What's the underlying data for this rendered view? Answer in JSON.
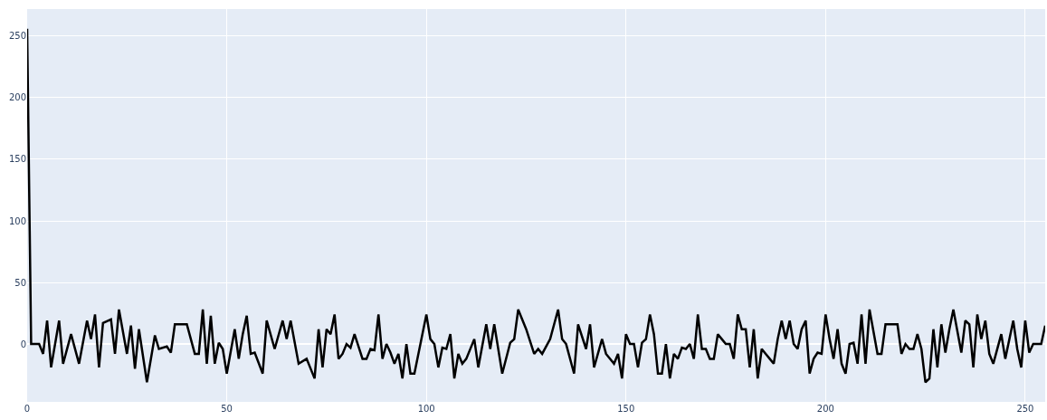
{
  "chart_data": {
    "type": "line",
    "xlim": [
      0,
      255
    ],
    "ylim": [
      -47,
      272
    ],
    "xticks": [
      0,
      50,
      100,
      150,
      200,
      250
    ],
    "yticks": [
      0,
      50,
      100,
      150,
      200,
      250
    ],
    "grid": true,
    "marker": "none",
    "line_style": "solid",
    "series": [
      {
        "color": "#000000",
        "x": [
          0,
          1,
          3,
          4,
          5,
          6,
          8,
          9,
          11,
          13,
          15,
          16,
          17,
          18,
          19,
          21,
          22,
          23,
          25,
          26,
          27,
          28,
          30,
          32,
          33,
          35,
          36,
          37,
          40,
          42,
          43,
          44,
          45,
          46,
          47,
          48,
          49,
          50,
          52,
          53,
          54,
          55,
          56,
          57,
          59,
          60,
          62,
          64,
          65,
          66,
          68,
          70,
          72,
          73,
          74,
          75,
          76,
          77,
          78,
          79,
          80,
          81,
          82,
          84,
          85,
          86,
          87,
          88,
          89,
          90,
          91,
          92,
          93,
          94,
          95,
          96,
          97,
          100,
          101,
          102,
          103,
          104,
          105,
          106,
          107,
          108,
          109,
          110,
          112,
          113,
          115,
          116,
          117,
          119,
          121,
          122,
          123,
          125,
          127,
          128,
          129,
          131,
          133,
          134,
          135,
          137,
          138,
          140,
          141,
          142,
          144,
          145,
          147,
          148,
          149,
          150,
          151,
          152,
          153,
          154,
          155,
          156,
          157,
          158,
          159,
          160,
          161,
          162,
          163,
          164,
          165,
          166,
          167,
          168,
          169,
          170,
          171,
          172,
          173,
          174,
          175,
          176,
          177,
          178,
          179,
          180,
          181,
          182,
          183,
          184,
          185,
          186,
          187,
          188,
          189,
          190,
          191,
          192,
          193,
          194,
          195,
          196,
          197,
          198,
          199,
          200,
          201,
          202,
          203,
          204,
          205,
          206,
          207,
          208,
          209,
          210,
          211,
          213,
          214,
          215,
          218,
          219,
          220,
          221,
          222,
          223,
          224,
          225,
          226,
          227,
          228,
          229,
          230,
          231,
          232,
          234,
          235,
          236,
          237,
          238,
          239,
          240,
          241,
          242,
          244,
          245,
          247,
          248,
          249,
          250,
          251,
          252,
          254,
          255
        ],
        "values": [
          256,
          0,
          0,
          -8,
          19,
          -19,
          19,
          -16,
          8,
          -16,
          19,
          4,
          24,
          -19,
          17,
          20,
          -8,
          28,
          -8,
          15,
          -20,
          12,
          -31,
          7,
          -4,
          -2,
          -7,
          16,
          16,
          -8,
          -8,
          28,
          -16,
          23,
          -16,
          1,
          -4,
          -24,
          12,
          -12,
          8,
          23,
          -8,
          -7,
          -24,
          19,
          -4,
          19,
          4,
          19,
          -16,
          -12,
          -28,
          12,
          -19,
          12,
          8,
          24,
          -12,
          -8,
          0,
          -3,
          8,
          -12,
          -12,
          -4,
          -5,
          24,
          -12,
          0,
          -7,
          -16,
          -8,
          -28,
          0,
          -24,
          -24,
          24,
          4,
          0,
          -19,
          -3,
          -4,
          8,
          -28,
          -8,
          -16,
          -12,
          4,
          -19,
          16,
          -4,
          16,
          -24,
          1,
          4,
          28,
          12,
          -8,
          -4,
          -8,
          4,
          28,
          4,
          0,
          -24,
          16,
          -4,
          16,
          -19,
          4,
          -8,
          -16,
          -8,
          -28,
          8,
          0,
          0,
          -19,
          1,
          4,
          24,
          8,
          -24,
          -24,
          0,
          -28,
          -8,
          -12,
          -3,
          -4,
          0,
          -12,
          24,
          -4,
          -4,
          -12,
          -12,
          8,
          4,
          0,
          0,
          -12,
          24,
          12,
          12,
          -19,
          12,
          -28,
          -4,
          -8,
          -12,
          -16,
          4,
          19,
          4,
          19,
          0,
          -4,
          12,
          19,
          -24,
          -12,
          -7,
          -8,
          24,
          4,
          -12,
          12,
          -16,
          -24,
          0,
          1,
          -16,
          24,
          -16,
          28,
          -8,
          -8,
          16,
          16,
          -8,
          0,
          -4,
          -4,
          8,
          -4,
          -31,
          -28,
          12,
          -19,
          16,
          -7,
          12,
          28,
          -7,
          19,
          16,
          -19,
          24,
          4,
          19,
          -8,
          -16,
          8,
          -12,
          19,
          -4,
          -19,
          19,
          -7,
          0,
          0,
          15
        ]
      }
    ]
  }
}
